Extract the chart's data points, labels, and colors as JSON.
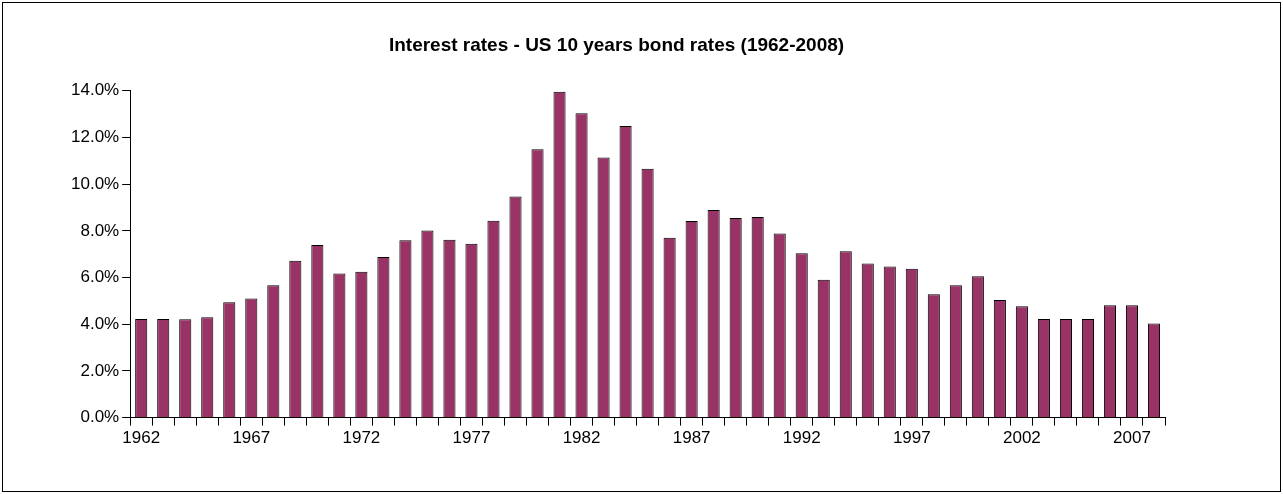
{
  "chart_data": {
    "type": "bar",
    "title": "Interest rates - US 10 years bond rates (1962-2008)",
    "categories": [
      "1962",
      null,
      null,
      null,
      null,
      "1967",
      null,
      null,
      null,
      null,
      "1972",
      null,
      null,
      null,
      null,
      "1977",
      null,
      null,
      null,
      null,
      "1982",
      null,
      null,
      null,
      null,
      "1987",
      null,
      null,
      null,
      null,
      "1992",
      null,
      null,
      null,
      null,
      "1997",
      null,
      null,
      null,
      null,
      "2002",
      null,
      null,
      null,
      null,
      "2007",
      null
    ],
    "values": [
      4.22,
      4.22,
      4.21,
      4.3,
      4.94,
      5.1,
      5.67,
      6.72,
      7.39,
      6.17,
      6.25,
      6.88,
      7.6,
      8.01,
      7.62,
      7.45,
      8.43,
      9.47,
      11.5,
      13.96,
      13.04,
      11.14,
      12.49,
      10.66,
      7.71,
      8.42,
      8.89,
      8.55,
      8.59,
      7.89,
      7.04,
      5.91,
      7.13,
      6.6,
      6.47,
      6.38,
      5.28,
      5.67,
      6.06,
      5.04,
      4.77,
      4.22,
      4.22,
      4.22,
      4.81,
      4.81,
      4.03
    ],
    "color": "#993366",
    "ylim": [
      0,
      14
    ],
    "yticks": [
      {
        "value": 0,
        "label": "0.0%"
      },
      {
        "value": 2,
        "label": "2.0%"
      },
      {
        "value": 4,
        "label": "4.0%"
      },
      {
        "value": 6,
        "label": "6.0%"
      },
      {
        "value": 8,
        "label": "8.0%"
      },
      {
        "value": 10,
        "label": "10.0%"
      },
      {
        "value": 12,
        "label": "12.0%"
      },
      {
        "value": 14,
        "label": "14.0%"
      }
    ],
    "grid": false,
    "legend": false
  }
}
